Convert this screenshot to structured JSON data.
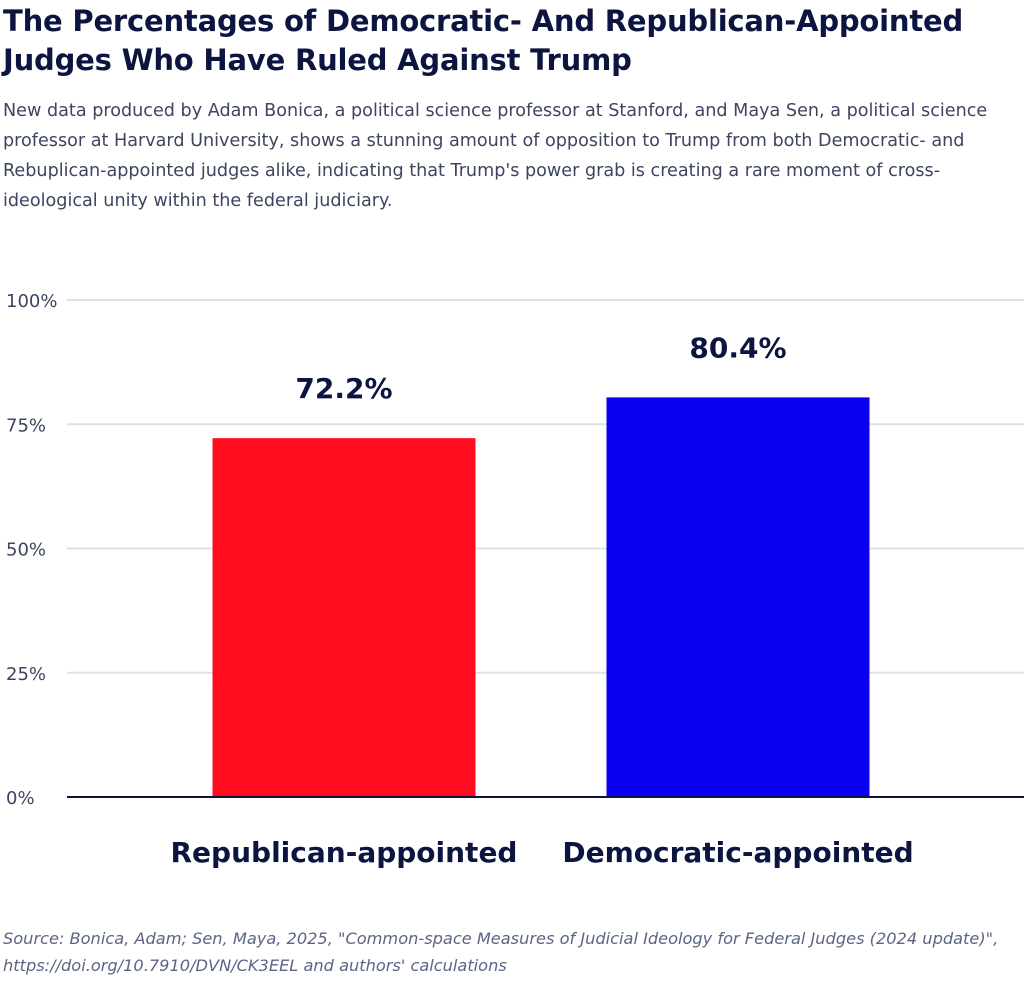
{
  "header": {
    "title": "The Percentages of Democratic- And Republican-Appointed Judges Who Have Ruled Against Trump",
    "subtitle": "New data produced by Adam Bonica, a political science professor at Stanford, and Maya Sen, a political science professor at Harvard University, shows a stunning amount of opposition to Trump from both Democratic- and Rebuplican-appointed judges alike, indicating that Trump's power grab is creating a rare moment of cross-ideological unity within the federal judiciary."
  },
  "chart_data": {
    "type": "bar",
    "categories": [
      "Republican-appointed",
      "Democratic-appointed"
    ],
    "values": [
      72.2,
      80.4
    ],
    "value_labels": [
      "72.2%",
      "80.4%"
    ],
    "colors": [
      "#ff0c1e",
      "#0a00f0"
    ],
    "ylim": [
      0,
      100
    ],
    "yticks": [
      0,
      25,
      50,
      75,
      100
    ],
    "ytick_labels": [
      "0%",
      "25%",
      "50%",
      "75%",
      "100%"
    ],
    "grid": true,
    "legend": "none",
    "title": "The Percentages of Democratic- And Republican-Appointed Judges Who Have Ruled Against Trump",
    "xlabel": "",
    "ylabel": ""
  },
  "footer": {
    "source": "Source: Bonica, Adam; Sen, Maya, 2025, \"Common-space Measures of Judicial Ideology for Federal Judges (2024 update)\", https://doi.org/10.7910/DVN/CK3EEL and authors' calculations"
  },
  "colors": {
    "text_dark": "#0b1540",
    "grid": "#dfe1e8",
    "baseline": "#0b1540"
  }
}
